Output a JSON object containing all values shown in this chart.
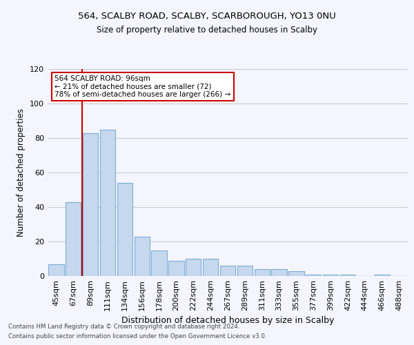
{
  "title": "564, SCALBY ROAD, SCALBY, SCARBOROUGH, YO13 0NU",
  "subtitle": "Size of property relative to detached houses in Scalby",
  "xlabel": "Distribution of detached houses by size in Scalby",
  "ylabel": "Number of detached properties",
  "categories": [
    "45sqm",
    "67sqm",
    "89sqm",
    "111sqm",
    "134sqm",
    "156sqm",
    "178sqm",
    "200sqm",
    "222sqm",
    "244sqm",
    "267sqm",
    "289sqm",
    "311sqm",
    "333sqm",
    "355sqm",
    "377sqm",
    "399sqm",
    "422sqm",
    "444sqm",
    "466sqm",
    "488sqm"
  ],
  "values": [
    7,
    43,
    83,
    85,
    54,
    23,
    15,
    9,
    10,
    10,
    6,
    6,
    4,
    4,
    3,
    1,
    1,
    1,
    0,
    1,
    0
  ],
  "bar_color": "#c5d8ee",
  "bar_edge_color": "#7aadd4",
  "vline_color": "#cc0000",
  "annotation_text": "564 SCALBY ROAD: 96sqm\n← 21% of detached houses are smaller (72)\n78% of semi-detached houses are larger (266) →",
  "annotation_box_color": "#ffffff",
  "annotation_box_edge_color": "#cc0000",
  "ylim": [
    0,
    120
  ],
  "yticks": [
    0,
    20,
    40,
    60,
    80,
    100,
    120
  ],
  "background_color": "#f5f5ff",
  "grid_color": "#cccccc",
  "footer_line1": "Contains HM Land Registry data © Crown copyright and database right 2024.",
  "footer_line2": "Contains public sector information licensed under the Open Government Licence v3.0."
}
